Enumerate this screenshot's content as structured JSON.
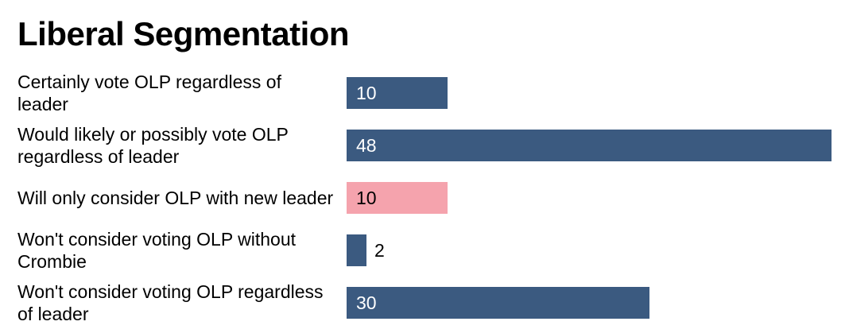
{
  "chart_data": {
    "type": "bar",
    "orientation": "horizontal",
    "title": "Liberal Segmentation",
    "categories": [
      "Certainly vote OLP regardless of leader",
      "Would likely or possibly vote OLP regardless of leader",
      "Will only consider OLP with new leader",
      "Won't consider voting OLP without Crombie",
      "Won't consider voting OLP regardless of leader"
    ],
    "values": [
      10,
      48,
      10,
      2,
      30
    ],
    "colors": [
      "#3b5a80",
      "#3b5a80",
      "#f5a3ad",
      "#3b5a80",
      "#3b5a80"
    ],
    "xlim": [
      0,
      48
    ],
    "grid": false,
    "legend": "none"
  }
}
